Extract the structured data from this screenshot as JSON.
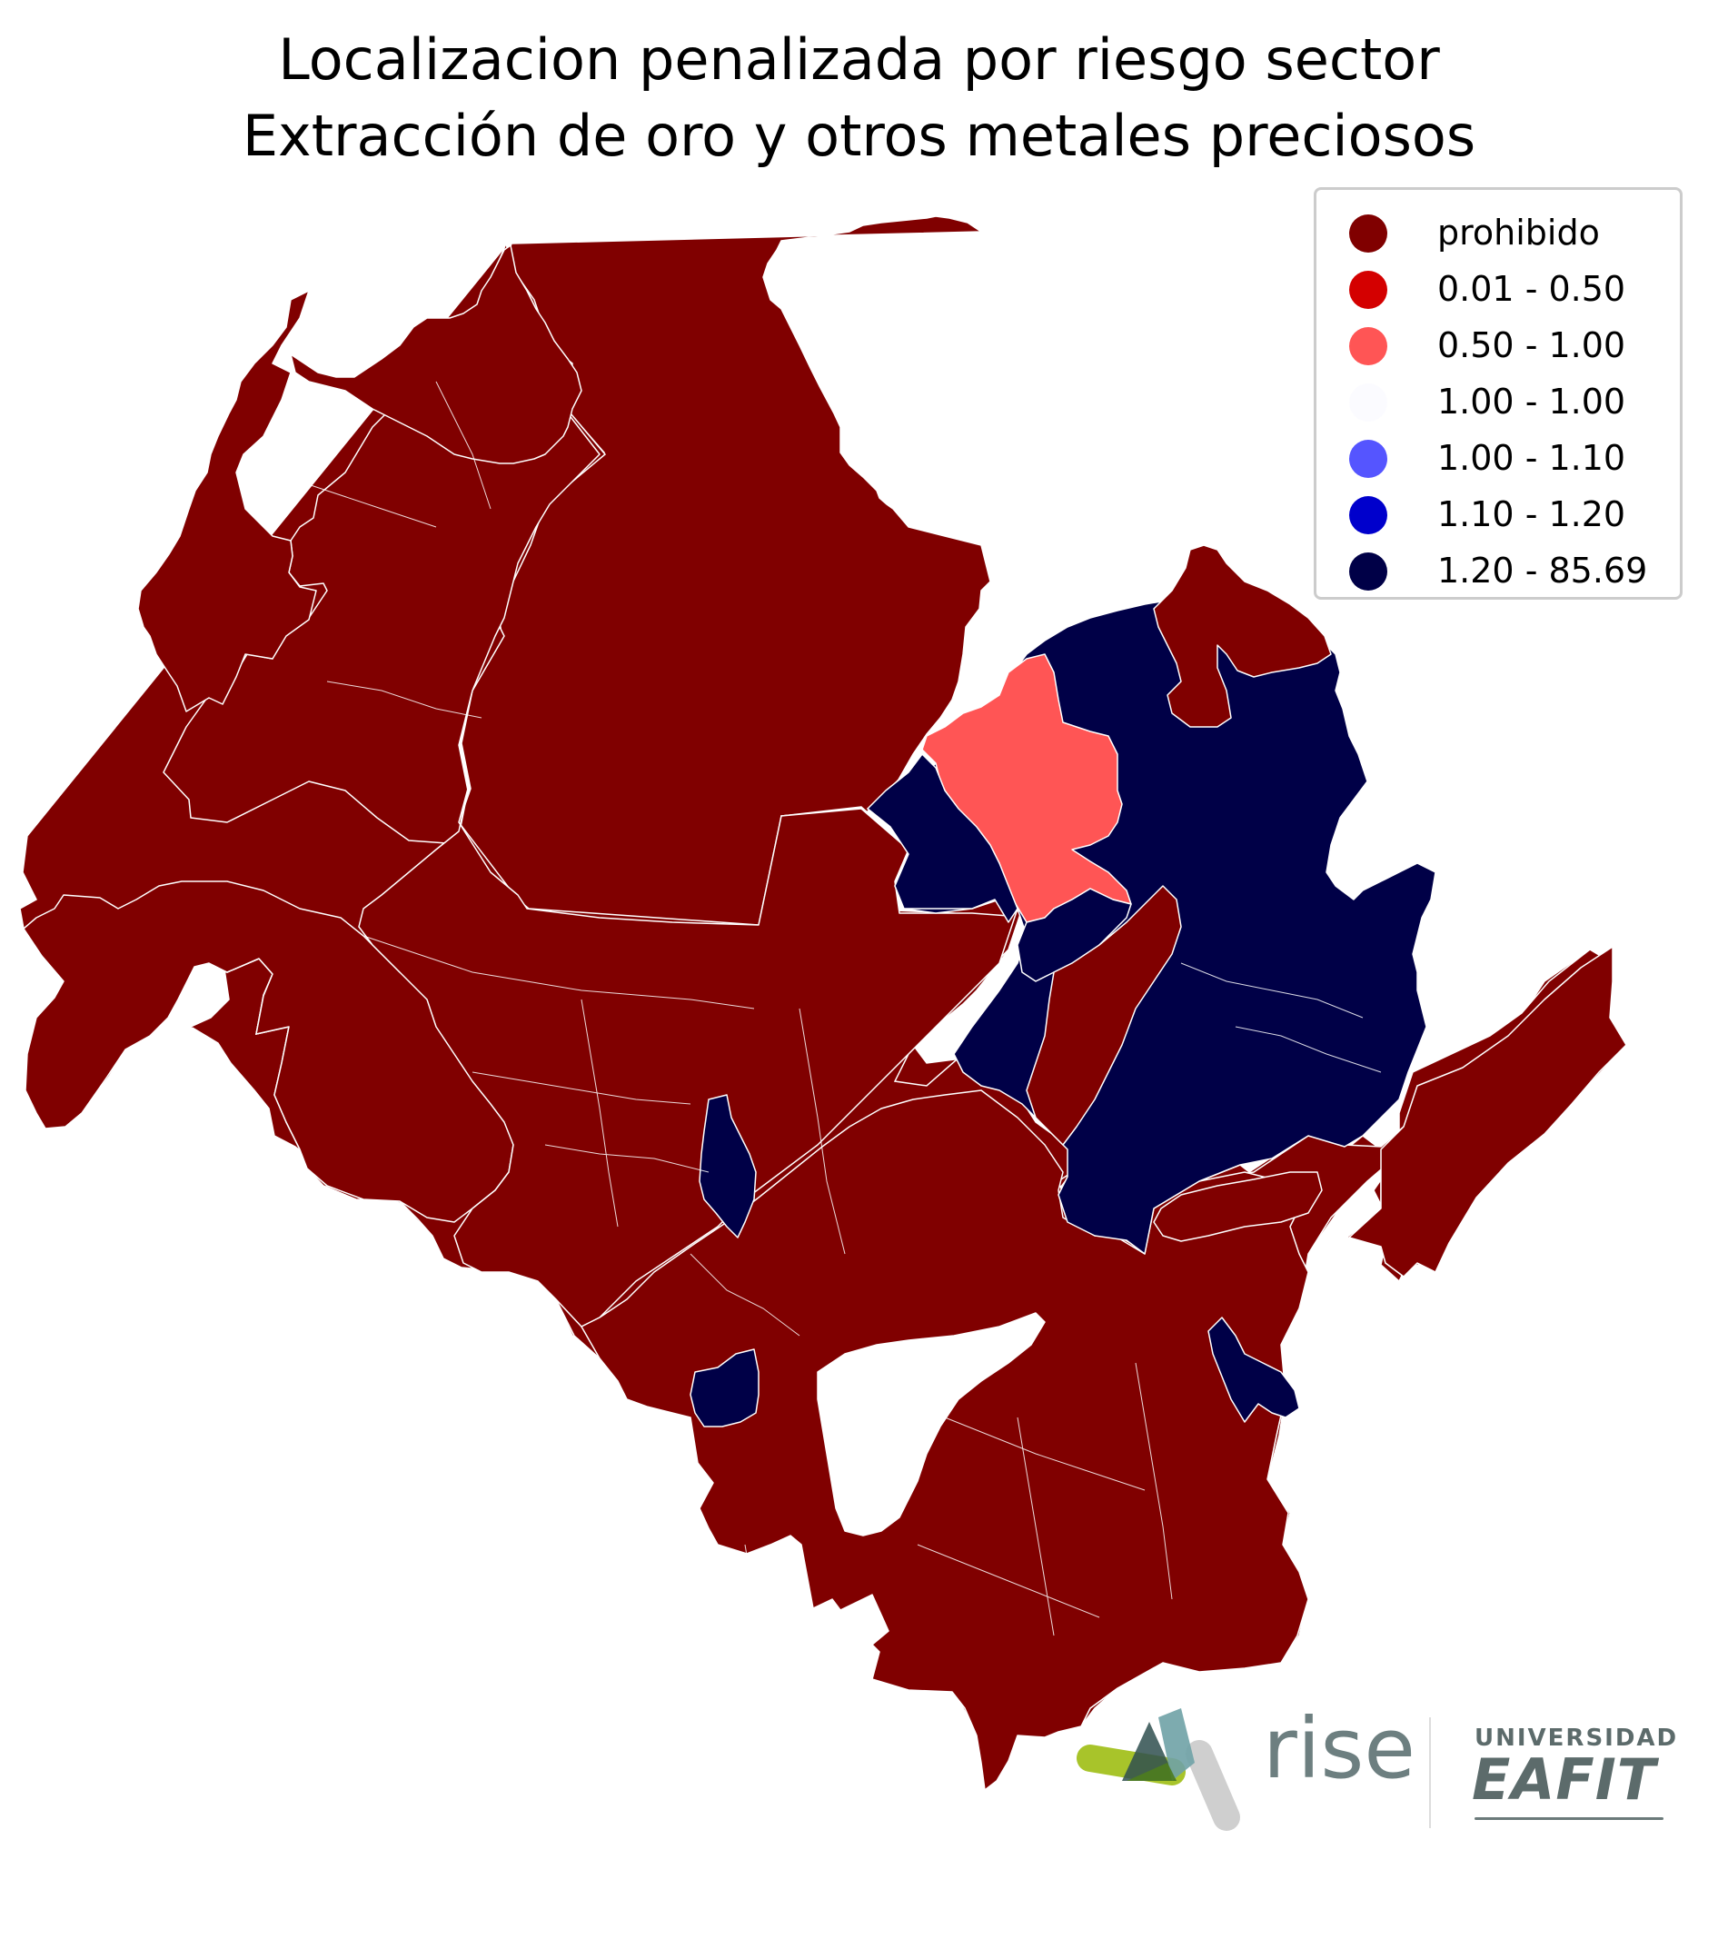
{
  "title": {
    "line1": "Localizacion penalizada por riesgo sector",
    "line2": "Extracción de oro y otros metales preciosos"
  },
  "legend": [
    {
      "label": "prohibido",
      "color": "#800000"
    },
    {
      "label": "0.01 - 0.50",
      "color": "#d40000"
    },
    {
      "label": "0.50 - 1.00",
      "color": "#ff5555"
    },
    {
      "label": "1.00 - 1.00",
      "color": "#fbfbff"
    },
    {
      "label": "1.00 - 1.10",
      "color": "#5555ff"
    },
    {
      "label": "1.10 - 1.20",
      "color": "#0000cc"
    },
    {
      "label": "1.20 - 85.69",
      "color": "#000047"
    }
  ],
  "map": {
    "region_fill_prohibido": "#800000",
    "region_fill_high": "#000047",
    "region_fill_mid": "#ff5555",
    "border_color": "#ffffff"
  },
  "logos": {
    "rise": "rise",
    "eafit_top": "UNIVERSIDAD",
    "eafit_main": "EAFIT"
  }
}
